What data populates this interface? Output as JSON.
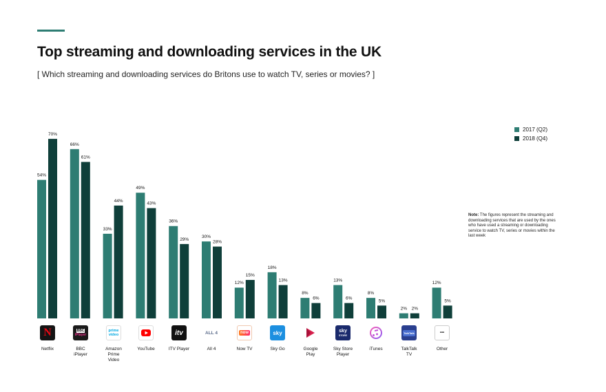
{
  "header": {
    "title": "Top streaming and downloading services in the UK",
    "subtitle": "[ Which streaming and downloading services do Britons use to watch TV, series or movies? ]"
  },
  "note": {
    "label": "Note:",
    "text": "The figures represent the streaming and downloading services that are used by the ones who have used a streaming or downloading service to watch TV, series or movies within the last week"
  },
  "colors": {
    "series_2017": "#2e7d73",
    "series_2018": "#0f3f3a",
    "accent": "#2e7d73"
  },
  "chart_data": {
    "type": "bar",
    "categories": [
      "Netflix",
      "BBC iPlayer",
      "Amazon Prime Video",
      "YouTube",
      "ITV Player",
      "All 4",
      "Now TV",
      "Sky Go",
      "Google Play",
      "Sky Store Player",
      "iTunes",
      "TalkTalk TV",
      "Other"
    ],
    "series": [
      {
        "name": "2017 (Q2)",
        "values": [
          54,
          66,
          33,
          49,
          36,
          30,
          12,
          18,
          8,
          13,
          8,
          2,
          12
        ]
      },
      {
        "name": "2018 (Q4)",
        "values": [
          70,
          61,
          44,
          43,
          29,
          28,
          15,
          13,
          6,
          6,
          5,
          2,
          5
        ]
      }
    ],
    "value_suffix": "%",
    "ylim": [
      0,
      70
    ],
    "legend": "top-right",
    "grid": false,
    "icons": [
      "netflix-logo",
      "bbc-iplayer-logo",
      "amazon-prime-video-logo",
      "youtube-logo",
      "itv-player-logo",
      "all4-logo",
      "now-tv-logo",
      "sky-go-logo",
      "google-play-logo",
      "sky-store-logo",
      "itunes-logo",
      "talktalk-tv-logo",
      "other-dots-icon"
    ],
    "logo_text": {
      "bbc": "BBC",
      "iplayer": "iPlayer",
      "prime": "prime",
      "video": "video",
      "itv": "itv",
      "all4": "ALL 4",
      "nowtv": "now",
      "sky": "sky",
      "store": "STORE",
      "talktalk": "TalkTalk",
      "other": "•••"
    }
  }
}
